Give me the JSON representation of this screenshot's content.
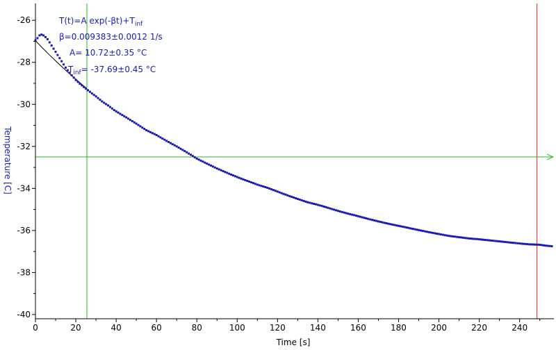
{
  "chart_data": {
    "type": "scatter",
    "title": "",
    "xlabel": "Time [s]",
    "ylabel": "Temperature [C]",
    "xlim": [
      0,
      257
    ],
    "ylim": [
      -40.2,
      -25.2
    ],
    "xticks": [
      0,
      20,
      40,
      60,
      80,
      100,
      120,
      140,
      160,
      180,
      200,
      220,
      240
    ],
    "yticks": [
      -40,
      -38,
      -36,
      -34,
      -32,
      -30,
      -28,
      -26
    ],
    "grid": false,
    "annotations": {
      "fit_equation_main": "T(t)=A exp(-βt)+T",
      "fit_equation_sub": "inf",
      "beta": "β=0.009383±0.0012 1/s",
      "amplitude": "A= 10.72±0.35 °C",
      "tinf_main": "T",
      "tinf_sub": "inf",
      "tinf_rest": "= -37.69±0.45 °C"
    },
    "cursors": {
      "vertical_green_x": 25.5,
      "vertical_red_x": 248.6,
      "horizontal_green_y": -32.5
    },
    "fit": {
      "A": 10.72,
      "beta": 0.009383,
      "T_inf": -37.69,
      "x_range": [
        0,
        25
      ]
    },
    "series": [
      {
        "values_xy": [
          [
            0.0,
            -26.95
          ],
          [
            1.0,
            -26.85
          ],
          [
            2.0,
            -26.72
          ],
          [
            3.0,
            -26.68
          ],
          [
            4.0,
            -26.72
          ],
          [
            5.0,
            -26.8
          ],
          [
            6.0,
            -26.9
          ],
          [
            7.0,
            -27.05
          ],
          [
            8.0,
            -27.2
          ],
          [
            9.0,
            -27.35
          ],
          [
            10.0,
            -27.5
          ],
          [
            11.0,
            -27.65
          ],
          [
            12.0,
            -27.8
          ],
          [
            13.0,
            -27.95
          ],
          [
            14.0,
            -28.1
          ],
          [
            15.0,
            -28.25
          ],
          [
            16.0,
            -28.38
          ],
          [
            17.0,
            -28.5
          ],
          [
            18.0,
            -28.62
          ],
          [
            19.0,
            -28.73
          ],
          [
            20.0,
            -28.84
          ],
          [
            22.0,
            -29.02
          ],
          [
            25.0,
            -29.25
          ],
          [
            28.0,
            -29.48
          ],
          [
            30.0,
            -29.62
          ],
          [
            33.0,
            -29.86
          ],
          [
            36.0,
            -30.05
          ],
          [
            39.0,
            -30.27
          ],
          [
            42.0,
            -30.45
          ],
          [
            45.0,
            -30.62
          ],
          [
            50.0,
            -30.92
          ],
          [
            55.0,
            -31.23
          ],
          [
            60.0,
            -31.46
          ],
          [
            65.0,
            -31.74
          ],
          [
            70.0,
            -32.0
          ],
          [
            75.0,
            -32.28
          ],
          [
            80.0,
            -32.58
          ],
          [
            85.0,
            -32.82
          ],
          [
            90.0,
            -33.05
          ],
          [
            95.0,
            -33.26
          ],
          [
            100.0,
            -33.46
          ],
          [
            105.0,
            -33.64
          ],
          [
            110.0,
            -33.82
          ],
          [
            115.0,
            -33.97
          ],
          [
            120.0,
            -34.15
          ],
          [
            125.0,
            -34.33
          ],
          [
            130.0,
            -34.5
          ],
          [
            135.0,
            -34.66
          ],
          [
            140.0,
            -34.78
          ],
          [
            145.0,
            -34.92
          ],
          [
            150.0,
            -35.07
          ],
          [
            155.0,
            -35.2
          ],
          [
            160.0,
            -35.32
          ],
          [
            165.0,
            -35.45
          ],
          [
            170.0,
            -35.57
          ],
          [
            175.0,
            -35.68
          ],
          [
            180.0,
            -35.78
          ],
          [
            185.0,
            -35.88
          ],
          [
            190.0,
            -35.98
          ],
          [
            195.0,
            -36.08
          ],
          [
            200.0,
            -36.17
          ],
          [
            205.0,
            -36.26
          ],
          [
            210.0,
            -36.32
          ],
          [
            215.0,
            -36.38
          ],
          [
            220.0,
            -36.42
          ],
          [
            225.0,
            -36.47
          ],
          [
            230.0,
            -36.52
          ],
          [
            235.0,
            -36.57
          ],
          [
            240.0,
            -36.62
          ],
          [
            245.0,
            -36.66
          ],
          [
            250.0,
            -36.68
          ],
          [
            253.0,
            -36.72
          ],
          [
            256.0,
            -36.75
          ]
        ]
      }
    ],
    "colors": {
      "data": "#1a1ab4",
      "axis_title": "#1a1ab4",
      "annotation": "#1a1ab4",
      "fit": "#000000",
      "cursor_green": "#22bb22",
      "cursor_red": "#dd2222",
      "axes": "#000000"
    }
  }
}
